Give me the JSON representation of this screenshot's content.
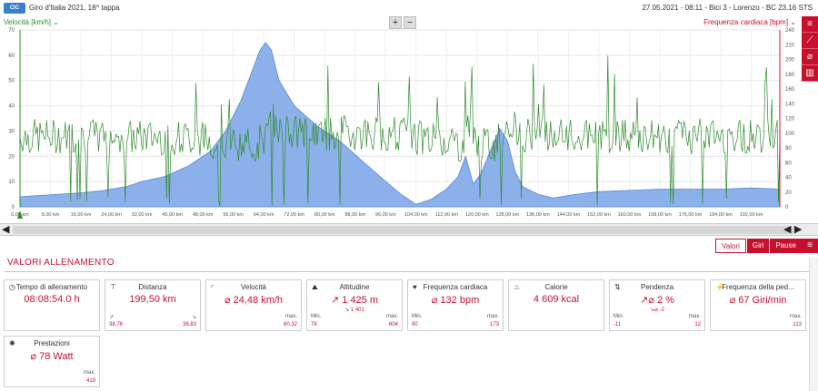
{
  "header": {
    "logo_text": "CIC",
    "title": "Giro d'Italia 2021, 18^ tappa",
    "meta": "27.05.2021  -  08:11  -  Bici 3  -  Lorenzo  -  BC 23.16 STS"
  },
  "chart_controls": {
    "zoom_in": "+",
    "zoom_out": "−"
  },
  "sidebar_icons": [
    "list-icon",
    "line-chart-icon",
    "diameter-icon",
    "bar-chart-icon"
  ],
  "chart_data": {
    "type": "line",
    "left_axis": {
      "title": "Velocità [km/h]",
      "ticks": [
        0,
        10,
        20,
        30,
        40,
        50,
        60,
        70
      ],
      "range": [
        0,
        70
      ],
      "color": "#2e8b2e"
    },
    "right_axis": {
      "title": "Frequenza cardiaca [bpm]",
      "ticks": [
        0,
        20,
        40,
        60,
        80,
        100,
        120,
        140,
        160,
        180,
        200,
        220,
        240
      ],
      "range": [
        0,
        240
      ],
      "color": "#c8102e"
    },
    "x_axis": {
      "ticks": [
        "0,00 km",
        "8,00 km",
        "16,00 km",
        "24,00 km",
        "32,00 km",
        "40,00 km",
        "48,00 km",
        "56,00 km",
        "64,00 km",
        "72,00 km",
        "80,00 km",
        "88,00 km",
        "96,00 km",
        "104,00 km",
        "112,00 km",
        "120,00 km",
        "128,00 km",
        "136,00 km",
        "144,00 km",
        "152,00 km",
        "160,00 km",
        "168,00 km",
        "176,00 km",
        "184,00 km",
        "192,00 km"
      ],
      "range": [
        0,
        199.5
      ]
    },
    "altitude_profile": {
      "name": "Altitudine",
      "color": "#7fa8e8",
      "points": [
        [
          0,
          4
        ],
        [
          5,
          4.5
        ],
        [
          10,
          5
        ],
        [
          16,
          5.5
        ],
        [
          22,
          6.5
        ],
        [
          28,
          8
        ],
        [
          32,
          10
        ],
        [
          38,
          12
        ],
        [
          44,
          16
        ],
        [
          50,
          22
        ],
        [
          54,
          30
        ],
        [
          58,
          42
        ],
        [
          61,
          54
        ],
        [
          63,
          62
        ],
        [
          64.5,
          65
        ],
        [
          66,
          62
        ],
        [
          68,
          50
        ],
        [
          72,
          40
        ],
        [
          78,
          32
        ],
        [
          84,
          26
        ],
        [
          90,
          18
        ],
        [
          96,
          10
        ],
        [
          100,
          5
        ],
        [
          104,
          1
        ],
        [
          108,
          3
        ],
        [
          112,
          7
        ],
        [
          115,
          12
        ],
        [
          117,
          20
        ],
        [
          119,
          9
        ],
        [
          121,
          13
        ],
        [
          124,
          24
        ],
        [
          126,
          31
        ],
        [
          128,
          26
        ],
        [
          130,
          14
        ],
        [
          132,
          8
        ],
        [
          136,
          5
        ],
        [
          140,
          3.5
        ],
        [
          146,
          5
        ],
        [
          152,
          6
        ],
        [
          160,
          6.5
        ],
        [
          168,
          7
        ],
        [
          176,
          7
        ],
        [
          184,
          7
        ],
        [
          192,
          7.5
        ],
        [
          199.5,
          7
        ]
      ]
    },
    "speed_series": {
      "name": "Velocità",
      "color": "#2e8b2e",
      "baseline_kmh": 28
    }
  },
  "bottom_tabs": [
    "Valori",
    "Giri",
    "Pause"
  ],
  "section_title": "VALORI ALLENAMENTO",
  "cards": [
    {
      "label": "Tempo di allenamento",
      "value": "08:08:54.0 h",
      "icon": "clock-icon"
    },
    {
      "label": "Distanza",
      "value": "199,50 km",
      "icon": "distance-icon",
      "min_value": "38,78",
      "max_value": "38,83",
      "min_label": "↗",
      "max_label": "↘"
    },
    {
      "label": "Velocità",
      "value": "⌀ 24,48 km/h",
      "icon": "speed-icon",
      "max_label": "max.",
      "max_value": "60,32"
    },
    {
      "label": "Altitudine",
      "value": "↗ 1 425 m",
      "sub": "↘ 1 401",
      "icon": "mountain-icon",
      "min_label": "Min.",
      "min_value": "79",
      "max_label": "max.",
      "max_value": "604"
    },
    {
      "label": "Frequenza cardiaca",
      "value": "⌀ 132 bpm",
      "icon": "heart-icon",
      "min_label": "Min.",
      "min_value": "90",
      "max_label": "max.",
      "max_value": "173"
    },
    {
      "label": "Calorie",
      "value": "4 609 kcal",
      "icon": "flame-icon"
    },
    {
      "label": "Pendenza",
      "value": "↗⌀ 2 %",
      "sub": "↘⌀ -2",
      "icon": "slope-icon",
      "min_label": "Min.",
      "min_value": "-11",
      "max_label": "max.",
      "max_value": "12"
    },
    {
      "label": "Frequenza della ped...",
      "value": "⌀ 67 Giri/min",
      "icon": "pedal-icon",
      "max_label": "max.",
      "max_value": "113"
    },
    {
      "label": "Prestazioni",
      "value": "⌀ 78 Watt",
      "icon": "power-icon",
      "max_label": "max.",
      "max_value": "419"
    }
  ]
}
